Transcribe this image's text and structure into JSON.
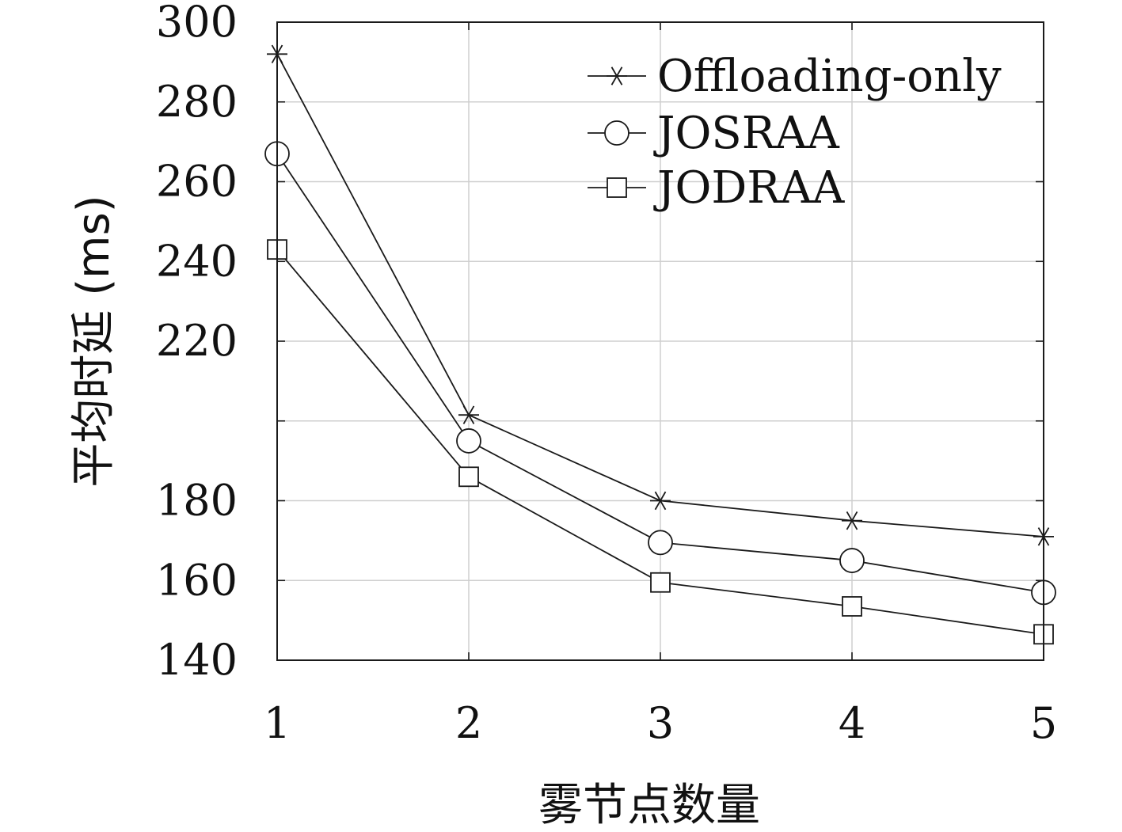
{
  "chart_data": {
    "type": "line",
    "title": "",
    "xlabel": "雾节点数量",
    "ylabel": "平均时延 (ms)",
    "x": [
      1,
      2,
      3,
      4,
      5
    ],
    "xlim": [
      1,
      5
    ],
    "ylim": [
      140,
      300
    ],
    "y_tick_values": [
      140,
      160,
      180,
      200,
      220,
      240,
      260,
      280,
      300
    ],
    "y_tick_labels": [
      "140",
      "160",
      "180",
      "",
      "220",
      "240",
      "260",
      "280",
      "300"
    ],
    "x_tick_labels": [
      "1",
      "2",
      "3",
      "4",
      "5"
    ],
    "grid": true,
    "legend_position": "top-right",
    "series": [
      {
        "name": "Offloading-only",
        "marker": "star",
        "values": [
          292,
          201.5,
          180,
          175,
          171
        ]
      },
      {
        "name": "JOSRAA",
        "marker": "circle",
        "values": [
          267,
          195,
          169.5,
          165,
          157
        ]
      },
      {
        "name": "JODRAA",
        "marker": "square",
        "values": [
          243,
          186,
          159.5,
          153.5,
          146.5
        ]
      }
    ]
  },
  "colors": {
    "line": "#1a1a1a",
    "grid": "#cfcfcf",
    "background": "#ffffff"
  }
}
